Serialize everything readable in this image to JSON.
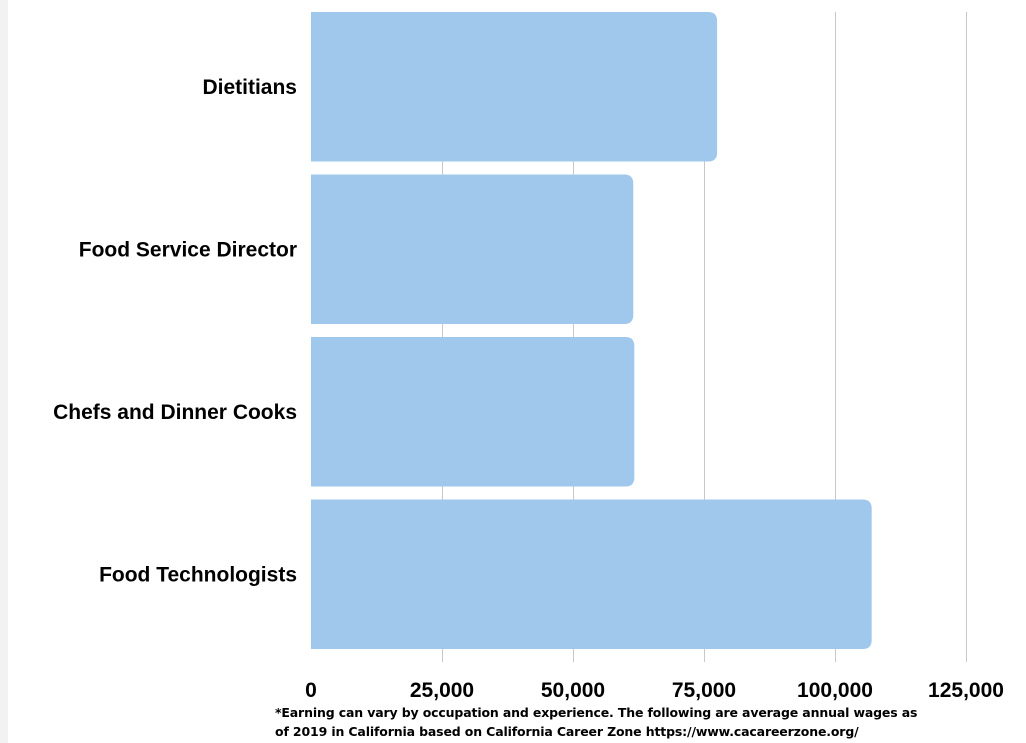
{
  "chart_data": {
    "type": "bar",
    "orientation": "horizontal",
    "categories": [
      "Dietitians",
      "Food Service Director",
      "Chefs and Dinner Cooks",
      "Food Technologists"
    ],
    "values": [
      77500,
      61500,
      61700,
      107000
    ],
    "xlim": [
      0,
      125000
    ],
    "ticks": [
      "0",
      "25,000",
      "50,000",
      "75,000",
      "100,000",
      "125,000"
    ],
    "tick_values": [
      0,
      25000,
      50000,
      75000,
      100000,
      125000
    ],
    "grid": "vertical",
    "bar_color": "#9fc8ec",
    "grid_color": "#c8c8c8"
  },
  "footnote": {
    "line1": "*Earning can vary by occupation and experience. The following are average annual wages as",
    "line2": "of 2019 in California based on California Career Zone  https://www.cacareerzone.org/"
  }
}
